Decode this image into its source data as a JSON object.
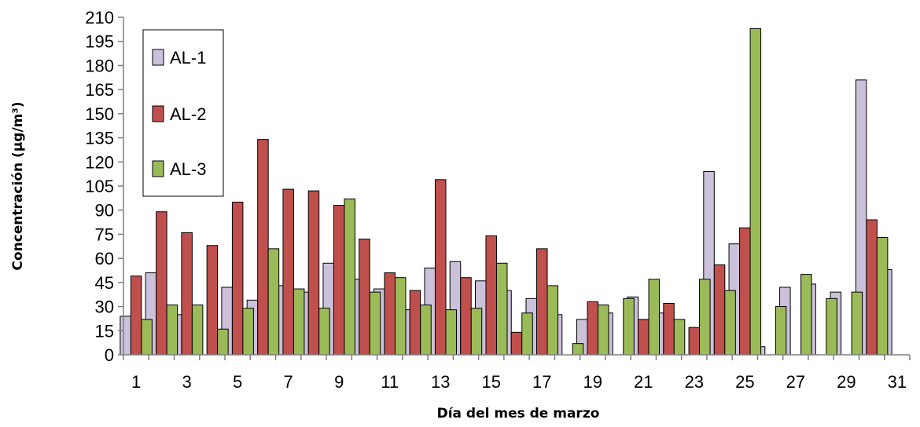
{
  "chart_data": {
    "type": "bar",
    "ylabel": "Concentración (µg/m³)",
    "xlabel": "Día del mes de marzo",
    "ylim": [
      0,
      210
    ],
    "yticks": [
      0,
      15,
      30,
      45,
      60,
      75,
      90,
      105,
      120,
      135,
      150,
      165,
      180,
      195,
      210
    ],
    "categories": [
      "1",
      "2",
      "3",
      "4",
      "5",
      "6",
      "7",
      "8",
      "9",
      "10",
      "11",
      "12",
      "13",
      "14",
      "15",
      "16",
      "17",
      "18",
      "19",
      "20",
      "21",
      "22",
      "23",
      "24",
      "25",
      "26",
      "27",
      "28",
      "29",
      "30",
      "31"
    ],
    "xtick_labels": [
      "1",
      "3",
      "5",
      "7",
      "9",
      "11",
      "13",
      "15",
      "17",
      "19",
      "21",
      "23",
      "25",
      "27",
      "29",
      "31"
    ],
    "legend_position": "top-left",
    "grid": false,
    "series": [
      {
        "name": "AL-1",
        "color": "#ccc1da",
        "values": [
          24,
          51,
          25,
          0,
          42,
          34,
          43,
          39,
          57,
          47,
          41,
          28,
          54,
          58,
          46,
          40,
          35,
          25,
          22,
          26,
          36,
          26,
          0,
          114,
          69,
          5,
          42,
          44,
          39,
          171,
          53
        ]
      },
      {
        "name": "AL-2",
        "color": "#c0504d",
        "values": [
          49,
          89,
          76,
          68,
          95,
          134,
          103,
          102,
          93,
          72,
          51,
          40,
          109,
          48,
          74,
          14,
          66,
          0,
          33,
          0,
          22,
          32,
          17,
          56,
          79,
          0,
          0,
          0,
          0,
          84,
          0
        ]
      },
      {
        "name": "AL-3",
        "color": "#9bbb59",
        "values": [
          22,
          31,
          31,
          16,
          29,
          66,
          41,
          29,
          97,
          39,
          48,
          31,
          28,
          29,
          57,
          26,
          43,
          7,
          31,
          35,
          47,
          22,
          47,
          40,
          203,
          30,
          50,
          35,
          39,
          73,
          0
        ]
      }
    ]
  }
}
